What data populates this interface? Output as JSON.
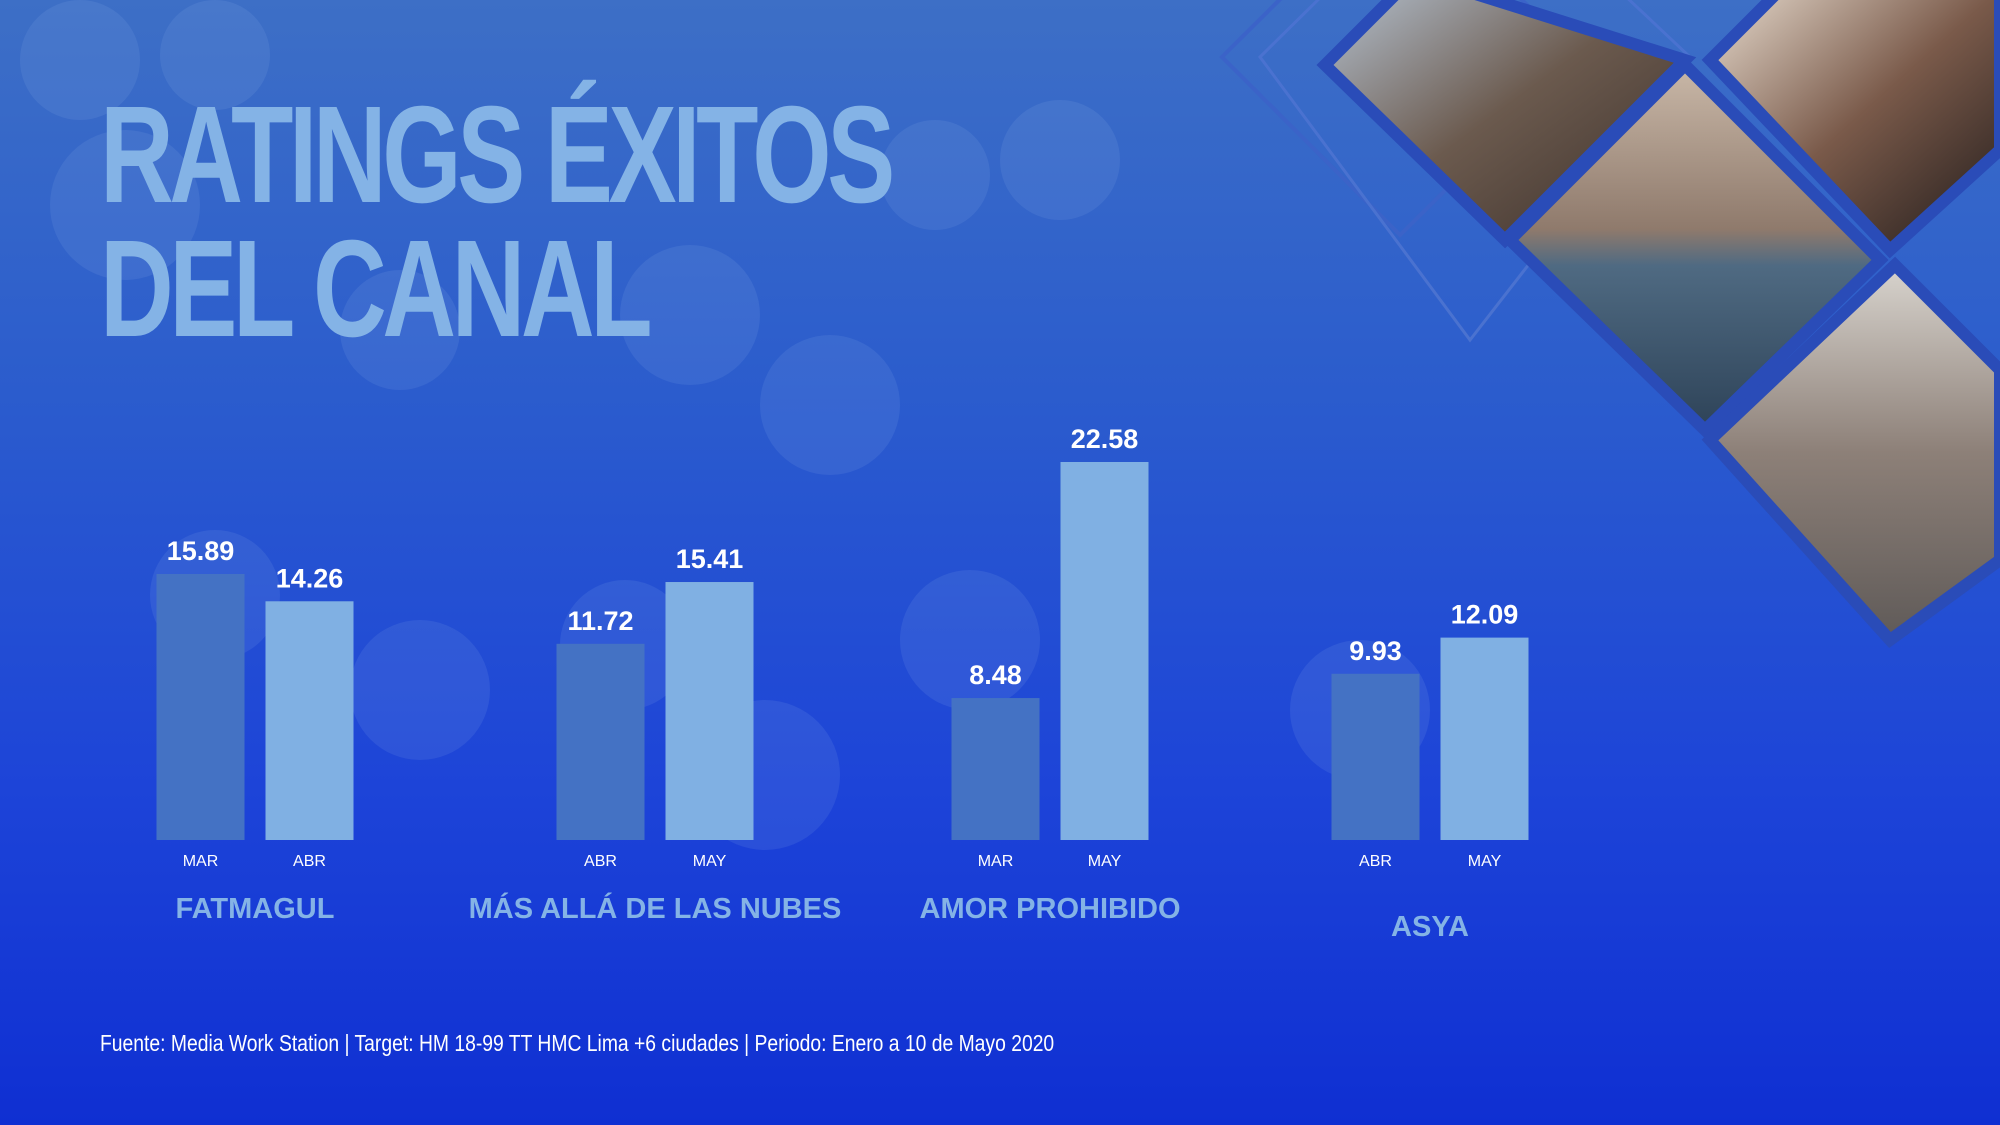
{
  "title_lines": [
    "RATINGS ÉXITOS",
    "DEL CANAL"
  ],
  "source": "Fuente:  Media Work Station | Target: HM 18-99 TT HMC Lima +6 ciudades | Periodo: Enero a 10 de Mayo 2020",
  "colors": {
    "background_top": "#3d6fc6",
    "background_bottom": "#0f2fd2",
    "bar_dark": "#4472c4",
    "bar_light": "#80b0e3",
    "label_light_blue": "#84b3e6",
    "value_text": "#ffffff"
  },
  "chart_data": {
    "type": "bar",
    "title": "RATINGS ÉXITOS DEL CANAL",
    "groups": [
      {
        "name": "FATMAGUL",
        "bars": [
          {
            "month": "MAR",
            "value": 15.89,
            "shade": "dark"
          },
          {
            "month": "ABR",
            "value": 14.26,
            "shade": "light"
          }
        ]
      },
      {
        "name": "MÁS ALLÁ DE LAS NUBES",
        "bars": [
          {
            "month": "ABR",
            "value": 11.72,
            "shade": "dark"
          },
          {
            "month": "MAY",
            "value": 15.41,
            "shade": "light"
          }
        ]
      },
      {
        "name": "AMOR PROHIBIDO",
        "bars": [
          {
            "month": "MAR",
            "value": 8.48,
            "shade": "dark"
          },
          {
            "month": "MAY",
            "value": 22.58,
            "shade": "light"
          }
        ]
      },
      {
        "name": "ASYA",
        "bars": [
          {
            "month": "ABR",
            "value": 9.93,
            "shade": "dark"
          },
          {
            "month": "MAY",
            "value": 12.09,
            "shade": "light"
          }
        ]
      }
    ],
    "ylim": [
      0,
      22.58
    ],
    "grid": false,
    "legend": "none"
  },
  "photo_collage": {
    "description_icon": "tv-series-photo-collage",
    "tiles": [
      "fatmagul-cast-photo",
      "couple-sea-photo",
      "couple-room-photo",
      "cast-group-bridge-photo"
    ]
  }
}
